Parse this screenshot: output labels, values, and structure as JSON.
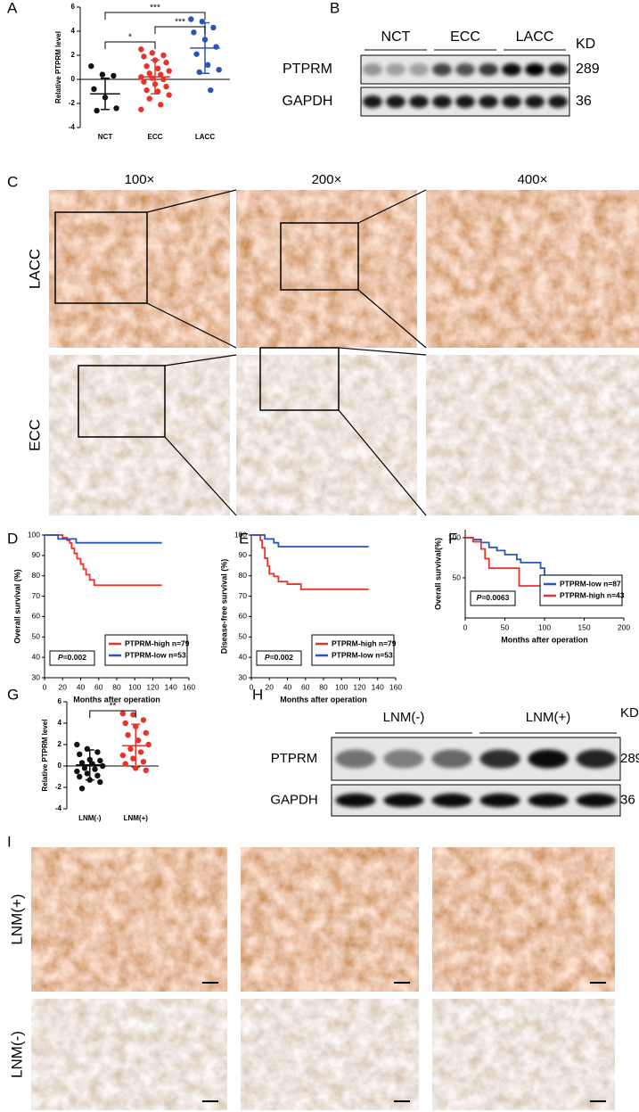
{
  "panels": [
    "A",
    "B",
    "C",
    "D",
    "E",
    "F",
    "G",
    "H",
    "I"
  ],
  "chart_data": [
    {
      "type": "strip",
      "y_label": "Relative PTPRM level",
      "categories": [
        "NCT",
        "ECC",
        "LACC"
      ],
      "ylim": [
        -4,
        6
      ],
      "yticks": [
        -4,
        -2,
        0,
        2,
        4,
        6
      ],
      "series": [
        {
          "color": "#111111",
          "values": [
            1.1,
            0.4,
            0.3,
            -0.8,
            -1.5,
            -2.4,
            -2.6
          ],
          "mean": -1.2,
          "sd": 1.3
        },
        {
          "color": "#e8322a",
          "values": [
            2.5,
            2.2,
            2.0,
            1.9,
            1.6,
            1.4,
            1.1,
            0.9,
            0.7,
            0.5,
            0.4,
            0.2,
            0.1,
            0.0,
            -0.2,
            -0.4,
            -0.6,
            -0.9,
            -1.0,
            -1.3,
            -1.6,
            -2.1,
            -2.5
          ],
          "mean": 0.2,
          "sd": 1.4
        },
        {
          "color": "#2a55b8",
          "values": [
            5.0,
            4.8,
            4.3,
            3.9,
            3.3,
            2.7,
            2.1,
            1.2,
            0.8,
            0.6,
            -0.9
          ],
          "mean": 2.6,
          "sd": 2.1
        }
      ],
      "significance": [
        "*",
        "***",
        "***"
      ]
    },
    {
      "type": "survival",
      "y_label": "Overall survival (%)",
      "x_label": "Months after operation",
      "xlim": [
        0,
        160
      ],
      "xticks": [
        0,
        20,
        40,
        60,
        80,
        100,
        120,
        140,
        160
      ],
      "ylim": [
        30,
        100
      ],
      "yticks": [
        30,
        40,
        50,
        60,
        70,
        80,
        90,
        100
      ],
      "p_label": "P",
      "p_text": "=0.002",
      "legend": "lower right",
      "series": [
        {
          "name": "PTPRM-high n=79",
          "color": "#e8322a",
          "x": [
            0,
            20,
            20,
            25,
            25,
            28,
            28,
            30,
            30,
            33,
            33,
            36,
            36,
            40,
            40,
            43,
            43,
            46,
            46,
            50,
            50,
            55,
            55,
            130
          ],
          "values": [
            100,
            100,
            98.7,
            98.7,
            97.4,
            97.4,
            96.1,
            96.1,
            93.5,
            93.5,
            91,
            91,
            88.4,
            88.4,
            85.8,
            85.8,
            83.2,
            83.2,
            80.6,
            80.6,
            78,
            78,
            75.4,
            75.4
          ]
        },
        {
          "name": "PTPRM-low n=53",
          "color": "#2a55b8",
          "x": [
            0,
            15,
            15,
            35,
            35,
            130
          ],
          "values": [
            100,
            100,
            98.1,
            98.1,
            96.2,
            96.2
          ]
        }
      ]
    },
    {
      "type": "survival",
      "y_label": "Disease-free survival (%)",
      "x_label": "Months after operation",
      "xlim": [
        0,
        160
      ],
      "xticks": [
        0,
        20,
        40,
        60,
        80,
        100,
        120,
        140,
        160
      ],
      "ylim": [
        30,
        100
      ],
      "yticks": [
        30,
        40,
        50,
        60,
        70,
        80,
        90,
        100
      ],
      "p_label": "P",
      "p_text": "=0.002",
      "legend": "lower right",
      "series": [
        {
          "name": "PTPRM-high n=79",
          "color": "#e8322a",
          "x": [
            0,
            10,
            10,
            12,
            12,
            15,
            15,
            18,
            18,
            20,
            20,
            25,
            25,
            30,
            30,
            40,
            40,
            55,
            55,
            130
          ],
          "values": [
            100,
            100,
            97.5,
            97.5,
            93.7,
            93.7,
            88.6,
            88.6,
            84.8,
            84.8,
            81,
            81,
            79.7,
            79.7,
            77.2,
            77.2,
            75.9,
            75.9,
            73.4,
            73.4
          ]
        },
        {
          "name": "PTPRM-low n=53",
          "color": "#2a55b8",
          "x": [
            0,
            15,
            15,
            25,
            25,
            30,
            30,
            130
          ],
          "values": [
            100,
            100,
            98.1,
            98.1,
            96.2,
            96.2,
            94.3,
            94.3
          ]
        }
      ]
    },
    {
      "type": "survival",
      "y_label": "Overall survival(%)",
      "x_label": "Months after operation",
      "xlim": [
        0,
        200
      ],
      "xticks": [
        0,
        50,
        100,
        150,
        200
      ],
      "ylim": [
        0,
        110
      ],
      "yticks": [
        50,
        100
      ],
      "p_label": "P",
      "p_text": "=0.0063",
      "legend": "lower right",
      "series": [
        {
          "name": "PTPRM-low n=87",
          "color": "#2a55b8",
          "x": [
            0,
            10,
            10,
            20,
            20,
            30,
            30,
            40,
            40,
            50,
            50,
            65,
            65,
            70,
            70,
            95,
            95,
            100,
            100,
            160
          ],
          "values": [
            100,
            100,
            97.7,
            97.7,
            94,
            94,
            88,
            88,
            84,
            84,
            79,
            79,
            73,
            73,
            69,
            69,
            62,
            62,
            53,
            53
          ]
        },
        {
          "name": "PTPRM-high n=43",
          "color": "#e8322a",
          "x": [
            0,
            10,
            10,
            20,
            20,
            25,
            25,
            30,
            30,
            68,
            68,
            130
          ],
          "values": [
            100,
            100,
            95,
            95,
            86,
            86,
            74,
            74,
            62,
            62,
            40,
            40
          ]
        }
      ]
    },
    {
      "type": "strip",
      "y_label": "Relative PTPRM level",
      "categories": [
        "LNM(-)",
        "LNM(+)"
      ],
      "ylim": [
        -4,
        6
      ],
      "yticks": [
        -4,
        -2,
        0,
        2,
        4,
        6
      ],
      "series": [
        {
          "color": "#111111",
          "values": [
            2.0,
            1.6,
            1.3,
            1.1,
            0.6,
            0.5,
            0.3,
            0.2,
            0.0,
            -0.2,
            -0.3,
            -0.5,
            -0.7,
            -0.9,
            -1.0,
            -1.3,
            -1.5,
            -2.1
          ],
          "mean": 0.1,
          "sd": 1.4
        },
        {
          "color": "#e8322a",
          "values": [
            4.9,
            4.8,
            4.3,
            4.0,
            3.7,
            3.1,
            2.9,
            2.4,
            2.0,
            1.6,
            1.3,
            1.0,
            0.7,
            0.4,
            0.2,
            -0.2,
            -0.4
          ],
          "mean": 1.9,
          "sd": 2.0
        }
      ],
      "significance": [
        "**"
      ]
    }
  ],
  "blots": [
    {
      "groups": [
        "NCT",
        "ECC",
        "LACC"
      ],
      "unit": "KD",
      "rows": [
        {
          "name": "PTPRM",
          "kd": 289
        },
        {
          "name": "GAPDH",
          "kd": 36
        }
      ]
    },
    {
      "groups": [
        "LNM(-)",
        "LNM(+)"
      ],
      "unit": "KD",
      "rows": [
        {
          "name": "PTPRM",
          "kd": 289
        },
        {
          "name": "GAPDH",
          "kd": 36
        }
      ]
    }
  ],
  "histology_c": {
    "columns": [
      "100×",
      "200×",
      "400×"
    ],
    "rows": [
      "LACC",
      "ECC"
    ]
  },
  "histology_i": {
    "rows": [
      "LNM(+)",
      "LNM(-)"
    ]
  }
}
